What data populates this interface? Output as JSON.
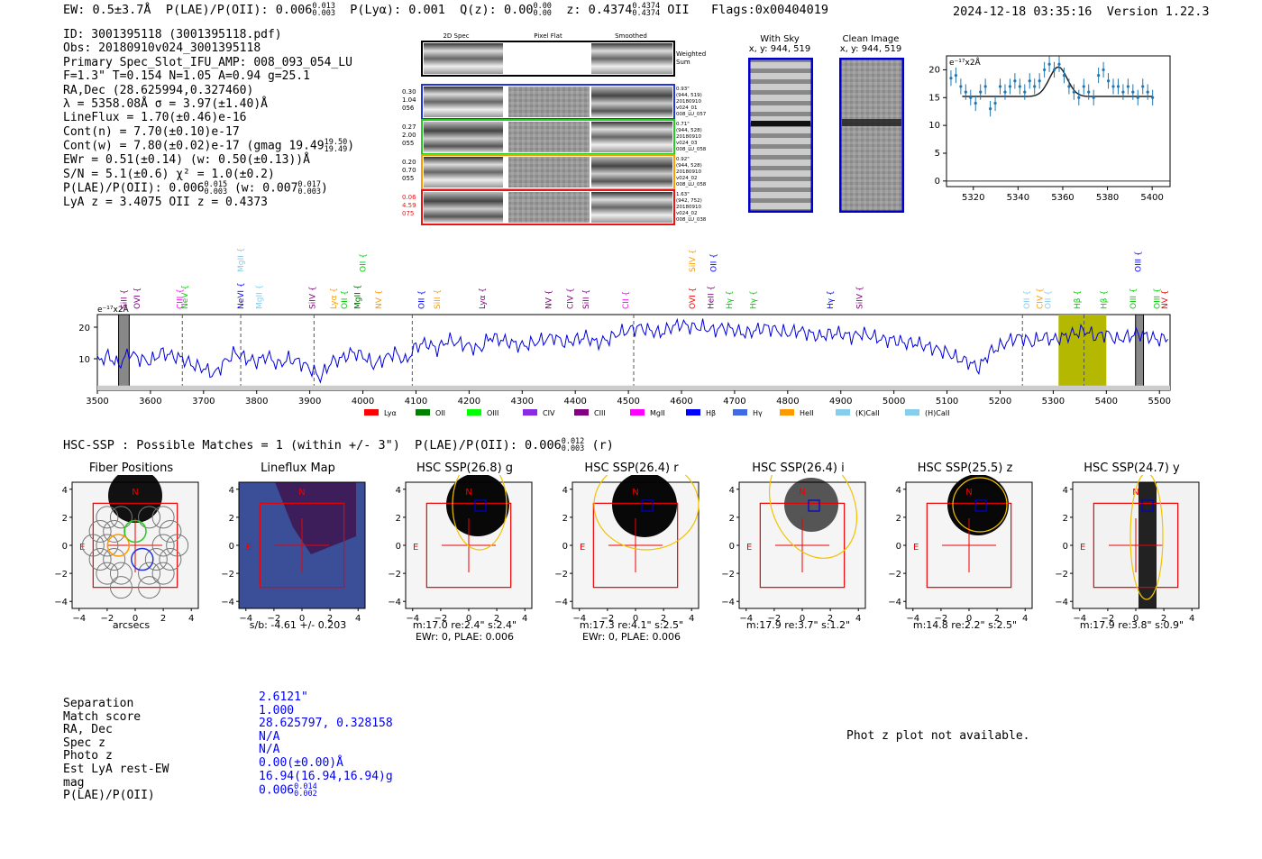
{
  "header": {
    "ew": "EW: 0.5±3.7Å",
    "plae_label": "P(LAE)/P(OII): 0.006",
    "plae_hi": "0.013",
    "plae_lo": "0.003",
    "plya": "P(Lyα): 0.001",
    "qz_label": "Q(z): 0.00",
    "qz_hi": "0.00",
    "qz_lo": "0.00",
    "z_label": "z: 0.4374",
    "z_hi": "0.4374",
    "z_lo": "0.4374",
    "z_line": "OII",
    "flags": "Flags:0x00404019",
    "timestamp": "2024-12-18 03:35:16",
    "version": "Version 1.22.3"
  },
  "details": {
    "id": "ID: 3001395118 (3001395118.pdf)",
    "obs": "Obs: 20180910v024_3001395118",
    "primary": "Primary Spec_Slot_IFU_AMP: 008_093_054_LU",
    "fit": "F=1.3\"  T=0.154  N=1.05  A=0.94  g=25.1",
    "radec": "RA,Dec (28.625994,0.327460)",
    "lambda": "λ = 5358.08Å  σ = 3.97(±1.40)Å",
    "lineflux": "LineFlux = 1.70(±0.46)e-16",
    "contn": "Cont(n) = 7.70(±0.10)e-17",
    "contw": "Cont(w) = 7.80(±0.02)e-17 (gmag 19.49",
    "contw_hi": "19.50",
    "contw_lo": "19.49",
    "ewr": "EWr = 0.51(±0.14) (w: 0.50(±0.13))Å",
    "sn": "S/N = 5.1(±0.6)  χ² = 1.0(±0.2)",
    "plae": "P(LAE)/P(OII): 0.006",
    "plae_hi": "0.015",
    "plae_lo": "0.003",
    "plae_w": "(w: 0.007",
    "plae_w_hi": "0.017",
    "plae_w_lo": "0.003",
    "lyaz": "LyA z = 3.4075  OII z = 0.4373"
  },
  "cutouts": {
    "col_2d": "2D Spec",
    "col_flat": "Pixel Flat",
    "col_smooth": "Smoothed",
    "weighted": "Weighted",
    "sum": "Sum",
    "rows": [
      {
        "left": [
          "0.30",
          "1.04",
          "056"
        ],
        "right": [
          "0.93\"",
          "(944, 519)",
          "20180910",
          "v024_01",
          "008_LU_057"
        ],
        "color": "#2233dd"
      },
      {
        "left": [
          "0.27",
          "2.00",
          "055"
        ],
        "right": [
          "0.71\"",
          "(944, 528)",
          "20180910",
          "v024_03",
          "008_LU_058"
        ],
        "color": "#22cc22"
      },
      {
        "left": [
          "0.20",
          "0.70",
          "055"
        ],
        "right": [
          "0.92\"",
          "(944, 528)",
          "20180910",
          "v024_02",
          "008_LU_058"
        ],
        "color": "#ff9900"
      },
      {
        "left": [
          "0.06",
          "4.59",
          "075"
        ],
        "right": [
          "1.63\"",
          "(942, 752)",
          "20180910",
          "v024_02",
          "008_LU_038"
        ],
        "color": "#ee1111"
      }
    ]
  },
  "sky": {
    "with_sky": "With Sky",
    "clean": "Clean Image",
    "coords": "x, y: 944, 519"
  },
  "zoom_plot": {
    "ylabel": "e⁻¹⁷x2Å",
    "xticks": [
      "5320",
      "5340",
      "5360",
      "5380",
      "5400"
    ],
    "yticks": [
      "0",
      "5",
      "10",
      "15",
      "20"
    ]
  },
  "chart_data": {
    "type": "line",
    "ylabel": "e⁻¹⁷x2Å",
    "xlim": [
      3500,
      5520
    ],
    "ylim": [
      0,
      24
    ],
    "xticks": [
      3500,
      3600,
      3700,
      3800,
      3900,
      4000,
      4100,
      4200,
      4300,
      4400,
      4500,
      4600,
      4700,
      4800,
      4900,
      5000,
      5100,
      5200,
      5300,
      5400,
      5500
    ],
    "yticks": [
      10,
      20
    ],
    "series": [
      {
        "x": [
          3500,
          3520,
          3540,
          3560,
          3580,
          3600,
          3620,
          3640,
          3660,
          3680,
          3700,
          3720,
          3740,
          3760,
          3780,
          3800,
          3820,
          3840,
          3860,
          3880,
          3900,
          3920,
          3940,
          3960,
          3980,
          4000,
          4020,
          4040,
          4060,
          4080,
          4100,
          4120,
          4140,
          4160,
          4180,
          4200,
          4220,
          4240,
          4260,
          4280,
          4300,
          4320,
          4340,
          4360,
          4380,
          4400,
          4420,
          4440,
          4460,
          4480,
          4500,
          4520,
          4540,
          4560,
          4580,
          4600,
          4620,
          4640,
          4660,
          4680,
          4700,
          4720,
          4740,
          4760,
          4780,
          4800,
          4820,
          4840,
          4860,
          4880,
          4900,
          4920,
          4940,
          4960,
          4980,
          5000,
          5020,
          5040,
          5060,
          5080,
          5100,
          5120,
          5140,
          5160,
          5180,
          5200,
          5220,
          5240,
          5260,
          5280,
          5300,
          5320,
          5340,
          5360,
          5380,
          5400,
          5420,
          5440,
          5460,
          5480,
          5500,
          5520
        ],
        "y": [
          9,
          11,
          8,
          12,
          10,
          9,
          12,
          11,
          10,
          8,
          7,
          5,
          9,
          12,
          10,
          9,
          11,
          8,
          10,
          9,
          7,
          4,
          9,
          10,
          12,
          11,
          8,
          10,
          12,
          9,
          14,
          15,
          13,
          16,
          15,
          14,
          13,
          17,
          16,
          15,
          14,
          15,
          16,
          17,
          15,
          16,
          17,
          15,
          16,
          18,
          19,
          20,
          19,
          18,
          20,
          21,
          20,
          20,
          19,
          20,
          19,
          18,
          19,
          20,
          19,
          18,
          19,
          18,
          17,
          18,
          18,
          17,
          18,
          17,
          16,
          16,
          15,
          15,
          14,
          13,
          12,
          10,
          9,
          7,
          12,
          14,
          16,
          17,
          15,
          17,
          16,
          17,
          18,
          19,
          17,
          18,
          16,
          17,
          18,
          17,
          16,
          17
        ]
      }
    ],
    "fill_regions": [
      [
        5310,
        5400
      ]
    ],
    "hatched_regions": [
      [
        3540,
        3560
      ],
      [
        5455,
        5470
      ]
    ],
    "dashed_lines": [
      3660,
      3770,
      3908,
      4093,
      4510,
      5242,
      5358
    ],
    "line_labels": [
      {
        "x": 3550,
        "text": "SiII",
        "color": "#800080"
      },
      {
        "x": 3575,
        "text": "OVI",
        "color": "#800080"
      },
      {
        "x": 3655,
        "text": "CIII",
        "color": "#ff00ff"
      },
      {
        "x": 3665,
        "text": "NeV",
        "color": "#00cc00"
      },
      {
        "x": 3770,
        "text": "NeVI",
        "color": "#0000ff"
      },
      {
        "x": 3805,
        "text": "MgII",
        "color": "#87ceeb"
      },
      {
        "x": 3905,
        "text": "SiIV",
        "color": "#800080"
      },
      {
        "x": 3945,
        "text": "Lyα",
        "color": "#ff9900"
      },
      {
        "x": 3965,
        "text": "OII",
        "color": "#00cc00"
      },
      {
        "x": 3990,
        "text": "MgII",
        "color": "#006600"
      },
      {
        "x": 4030,
        "text": "NV",
        "color": "#ff9900"
      },
      {
        "x": 4110,
        "text": "OII",
        "color": "#0000ff"
      },
      {
        "x": 4140,
        "text": "SiII",
        "color": "#ff9900"
      },
      {
        "x": 4225,
        "text": "Lyα",
        "color": "#800080"
      },
      {
        "x": 4350,
        "text": "NV",
        "color": "#800080"
      },
      {
        "x": 4390,
        "text": "CIV",
        "color": "#800080"
      },
      {
        "x": 4420,
        "text": "SiII",
        "color": "#800080"
      },
      {
        "x": 4495,
        "text": "CII",
        "color": "#ff00ff"
      },
      {
        "x": 4620,
        "text": "OVI",
        "color": "#ff0000"
      },
      {
        "x": 4655,
        "text": "HeII",
        "color": "#800080"
      },
      {
        "x": 4690,
        "text": "Hγ",
        "color": "#00cc00"
      },
      {
        "x": 4735,
        "text": "Hγ",
        "color": "#00cc00"
      },
      {
        "x": 4880,
        "text": "Hγ",
        "color": "#0000ff"
      },
      {
        "x": 4935,
        "text": "SiIV",
        "color": "#800080"
      },
      {
        "x": 5250,
        "text": "OII",
        "color": "#87ceeb"
      },
      {
        "x": 5275,
        "text": "CIV",
        "color": "#ff9900"
      },
      {
        "x": 5290,
        "text": "OII",
        "color": "#87ceeb"
      },
      {
        "x": 5345,
        "text": "Hβ",
        "color": "#00cc00"
      },
      {
        "x": 5395,
        "text": "Hβ",
        "color": "#00cc00"
      },
      {
        "x": 5450,
        "text": "OIII",
        "color": "#00cc00"
      },
      {
        "x": 5495,
        "text": "OIII",
        "color": "#00cc00"
      },
      {
        "x": 5510,
        "text": "NV",
        "color": "#ff0000"
      }
    ],
    "top_labels": [
      {
        "x": 3770,
        "text": "MgII",
        "color": "#87ceeb"
      },
      {
        "x": 4000,
        "text": "OII",
        "color": "#00cc00"
      },
      {
        "x": 4620,
        "text": "SiIV",
        "color": "#ff9900"
      },
      {
        "x": 4660,
        "text": "OII",
        "color": "#0000ff"
      },
      {
        "x": 5460,
        "text": "OIII",
        "color": "#0000ff"
      }
    ],
    "legend": [
      {
        "label": "Lyα",
        "color": "#ff0000"
      },
      {
        "label": "OII",
        "color": "#008000"
      },
      {
        "label": "OIII",
        "color": "#00ff00"
      },
      {
        "label": "CIV",
        "color": "#8a2be2"
      },
      {
        "label": "CIII",
        "color": "#800080"
      },
      {
        "label": "MgII",
        "color": "#ff00ff"
      },
      {
        "label": "Hβ",
        "color": "#0000ff"
      },
      {
        "label": "Hγ",
        "color": "#4169e1"
      },
      {
        "label": "HeII",
        "color": "#ff9900"
      },
      {
        "label": "(K)CaII",
        "color": "#87ceeb"
      },
      {
        "label": "(H)CaII",
        "color": "#87ceeb"
      }
    ],
    "legend_placement": "bottom"
  },
  "hsc": {
    "header": "HSC-SSP : Possible Matches = 1 (within +/- 3\")",
    "plae": "P(LAE)/P(OII): 0.006",
    "plae_hi": "0.012",
    "plae_lo": "0.003",
    "band": "(r)",
    "panels": [
      {
        "title": "Fiber Positions",
        "cap1": "arcsecs",
        "cap2": ""
      },
      {
        "title": "Lineflux Map",
        "cap1": "s/b: -4.61 +/- 0.203",
        "cap2": ""
      },
      {
        "title": "HSC SSP(26.8) g",
        "cap1": "m:17.0  re:2.4\"  s:2.4\"",
        "cap2": "EWr: 0, PLAE: 0.006"
      },
      {
        "title": "HSC SSP(26.4) r",
        "cap1": "m:17.3  re:4.1\"  s:2.5\"",
        "cap2": "EWr: 0, PLAE: 0.006"
      },
      {
        "title": "HSC SSP(26.4) i",
        "cap1": "m:17.9  re:3.7\"  s:1.2\"",
        "cap2": ""
      },
      {
        "title": "HSC SSP(25.5) z",
        "cap1": "m:14.8  re:2.2\"  s:2.5\"",
        "cap2": ""
      },
      {
        "title": "HSC SSP(24.7) y",
        "cap1": "m:17.9  re:3.8\"  s:0.9\"",
        "cap2": ""
      }
    ],
    "yticks": [
      "4",
      "2",
      "0",
      "−2",
      "−4"
    ],
    "xticks": [
      "−4",
      "−2",
      "0",
      "2",
      "4"
    ],
    "north": "N",
    "east": "E"
  },
  "match": {
    "labels": [
      "Separation",
      "Match score",
      "RA, Dec",
      "Spec z",
      "Photo z",
      "Est LyA rest-EW",
      "mag",
      "P(LAE)/P(OII)"
    ],
    "values": [
      "2.6121\"",
      "1.000",
      "28.625797, 0.328158",
      "N/A",
      "N/A",
      "0.00(±0.00)Å",
      "16.94(16.94,16.94)g",
      "0.006"
    ],
    "plae_hi": "0.014",
    "plae_lo": "0.002",
    "photz_msg": "Phot z plot not available."
  }
}
